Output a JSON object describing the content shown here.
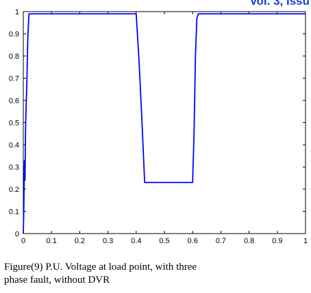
{
  "header": {
    "text": "Vol. 3, Issu",
    "color": "#1a3bd6"
  },
  "caption": {
    "line1": "Figure(9) P.U. Voltage at load point, with three",
    "line2": "phase fault, without DVR"
  },
  "chart_data": {
    "type": "line",
    "title": "",
    "xlabel": "",
    "ylabel": "",
    "xlim": [
      0,
      1
    ],
    "ylim": [
      0,
      1
    ],
    "xticks": [
      0,
      0.1,
      0.2,
      0.3,
      0.4,
      0.5,
      0.6,
      0.7,
      0.8,
      0.9,
      1
    ],
    "xtick_labels": [
      "0",
      "0.1",
      "0.2",
      "0.3",
      "0.4",
      "0.5",
      "0.6",
      "0.7",
      "0.8",
      "0.9",
      "1"
    ],
    "yticks": [
      0,
      0.1,
      0.2,
      0.3,
      0.4,
      0.5,
      0.6,
      0.7,
      0.8,
      0.9,
      1
    ],
    "ytick_labels": [
      "0",
      "0.1",
      "0.2",
      "0.3",
      "0.4",
      "0.5",
      "0.6",
      "0.7",
      "0.8",
      "0.9",
      "1"
    ],
    "grid": false,
    "legend": "none",
    "series": [
      {
        "color": "#0000ff",
        "x": [
          0,
          0.002,
          0.004,
          0.006,
          0.008,
          0.01,
          0.013,
          0.016,
          0.02,
          0.1,
          0.2,
          0.3,
          0.39,
          0.4,
          0.41,
          0.42,
          0.43,
          0.5,
          0.55,
          0.6,
          0.605,
          0.61,
          0.615,
          0.62,
          0.63,
          0.7,
          0.8,
          0.9,
          1.0
        ],
        "y": [
          0.0,
          0.12,
          0.33,
          0.24,
          0.47,
          0.57,
          0.7,
          0.88,
          0.99,
          0.99,
          0.99,
          0.99,
          0.99,
          0.99,
          0.78,
          0.52,
          0.23,
          0.23,
          0.23,
          0.23,
          0.45,
          0.8,
          0.97,
          0.99,
          0.99,
          0.99,
          0.99,
          0.99,
          0.99
        ]
      }
    ]
  }
}
